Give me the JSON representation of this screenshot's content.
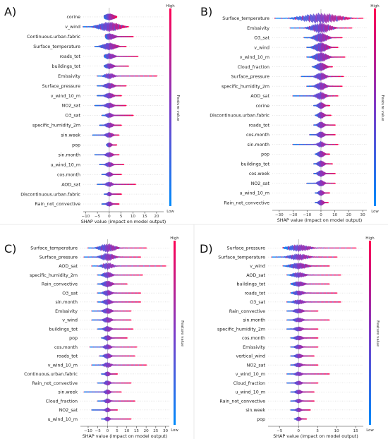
{
  "chart_data": [
    {
      "type": "beeswarm",
      "panel_label": "A)",
      "xlabel": "SHAP value (impact on model output)",
      "xticks": [
        -10,
        -5,
        0,
        5,
        10,
        15,
        20
      ],
      "xlim": [
        -11,
        23
      ],
      "colorbar": {
        "high": "High",
        "low": "Low",
        "label": "Feature value"
      },
      "features": [
        {
          "name": "corine",
          "min": -2,
          "max": 3,
          "mean_abs": 2.0
        },
        {
          "name": "v_wind",
          "min": -11,
          "max": 8,
          "mean_abs": 4.0
        },
        {
          "name": "Continuous.urban.fabric",
          "min": -1.5,
          "max": 10,
          "mean_abs": 2.0
        },
        {
          "name": "Surface_temperature",
          "min": -6,
          "max": 7,
          "mean_abs": 2.5
        },
        {
          "name": "roads_tot",
          "min": -2,
          "max": 12,
          "mean_abs": 1.8
        },
        {
          "name": "buildings_tot",
          "min": -2,
          "max": 8,
          "mean_abs": 1.5
        },
        {
          "name": "Emissivity",
          "min": -5,
          "max": 20,
          "mean_abs": 1.8
        },
        {
          "name": "Surface_pressure",
          "min": -5,
          "max": 7,
          "mean_abs": 1.7
        },
        {
          "name": "v_wind_10_m",
          "min": -5,
          "max": 5,
          "mean_abs": 1.5
        },
        {
          "name": "NO2_sat",
          "min": -6,
          "max": 7,
          "mean_abs": 1.5
        },
        {
          "name": "O3_sat",
          "min": -3,
          "max": 10,
          "mean_abs": 1.2
        },
        {
          "name": "specific_humidity_2m",
          "min": -4,
          "max": 5,
          "mean_abs": 1.3
        },
        {
          "name": "sin.week",
          "min": -7,
          "max": 4,
          "mean_abs": 1.3
        },
        {
          "name": "pop",
          "min": -1,
          "max": 3,
          "mean_abs": 0.8
        },
        {
          "name": "sin.month",
          "min": -6,
          "max": 4,
          "mean_abs": 1.2
        },
        {
          "name": "u_wind_10_m",
          "min": -4,
          "max": 6,
          "mean_abs": 1.2
        },
        {
          "name": "cos.month",
          "min": -3,
          "max": 5,
          "mean_abs": 1.0
        },
        {
          "name": "AOD_sat",
          "min": -5,
          "max": 11,
          "mean_abs": 1.2
        },
        {
          "name": "Discontinuous.urban.fabric",
          "min": -2,
          "max": 5,
          "mean_abs": 0.7
        },
        {
          "name": "Rain_not_convective",
          "min": -3,
          "max": 4,
          "mean_abs": 1.0
        }
      ]
    },
    {
      "type": "beeswarm",
      "panel_label": "B)",
      "xlabel": "SHAP value (impact on model output)",
      "xticks": [
        -30,
        -20,
        -10,
        0,
        10,
        20,
        30
      ],
      "xlim": [
        -35,
        33
      ],
      "colorbar": {
        "high": "High",
        "low": "Low",
        "label": "Feature value"
      },
      "features": [
        {
          "name": "Surface_temperature",
          "min": -33,
          "max": 30,
          "mean_abs": 12
        },
        {
          "name": "Emissivity",
          "min": -22,
          "max": 22,
          "mean_abs": 6
        },
        {
          "name": "O3_sat",
          "min": -12,
          "max": 15,
          "mean_abs": 4
        },
        {
          "name": "v_wind",
          "min": -10,
          "max": 12,
          "mean_abs": 4
        },
        {
          "name": "v_wind_10_m",
          "min": -10,
          "max": 17,
          "mean_abs": 4
        },
        {
          "name": "Cloud_fraction",
          "min": -6,
          "max": 8,
          "mean_abs": 3
        },
        {
          "name": "Surface_pressure",
          "min": -14,
          "max": 16,
          "mean_abs": 3
        },
        {
          "name": "specific_humidity_2m",
          "min": -10,
          "max": 15,
          "mean_abs": 3
        },
        {
          "name": "AOD_sat",
          "min": -20,
          "max": 12,
          "mean_abs": 3
        },
        {
          "name": "corine",
          "min": -5,
          "max": 6,
          "mean_abs": 2
        },
        {
          "name": "Discontinuous.urban.fabric",
          "min": -4,
          "max": 7,
          "mean_abs": 2
        },
        {
          "name": "roads_tot",
          "min": -5,
          "max": 10,
          "mean_abs": 2
        },
        {
          "name": "cos.month",
          "min": -8,
          "max": 10,
          "mean_abs": 2
        },
        {
          "name": "sin.month",
          "min": -20,
          "max": 12,
          "mean_abs": 2
        },
        {
          "name": "pop",
          "min": -4,
          "max": 6,
          "mean_abs": 2
        },
        {
          "name": "buildings_tot",
          "min": -5,
          "max": 8,
          "mean_abs": 2
        },
        {
          "name": "cos.week",
          "min": -5,
          "max": 10,
          "mean_abs": 2
        },
        {
          "name": "NO2_sat",
          "min": -10,
          "max": 10,
          "mean_abs": 2
        },
        {
          "name": "u_wind_10_m",
          "min": -4,
          "max": 6,
          "mean_abs": 1.5
        },
        {
          "name": "Rain_not_convective",
          "min": -4,
          "max": 5,
          "mean_abs": 1.5
        }
      ]
    },
    {
      "type": "beeswarm",
      "panel_label": "C)",
      "xlabel": "SHAP value (impact on model output)",
      "xticks": [
        -10,
        -5,
        0,
        5,
        10,
        15,
        20,
        25,
        30
      ],
      "xlim": [
        -14,
        32
      ],
      "colorbar": {
        "high": "High",
        "low": "Low",
        "label": "Feature value"
      },
      "features": [
        {
          "name": "Surface_temperature",
          "min": -10,
          "max": 20,
          "mean_abs": 3.5
        },
        {
          "name": "Surface_pressure",
          "min": -12,
          "max": 17,
          "mean_abs": 3.0
        },
        {
          "name": "AOD_sat",
          "min": -8,
          "max": 30,
          "mean_abs": 2.5
        },
        {
          "name": "specific_humidity_2m",
          "min": -5,
          "max": 18,
          "mean_abs": 2.0
        },
        {
          "name": "Rain_convective",
          "min": -5,
          "max": 10,
          "mean_abs": 2.0
        },
        {
          "name": "O3_sat",
          "min": -5,
          "max": 17,
          "mean_abs": 1.8
        },
        {
          "name": "sin.month",
          "min": -5,
          "max": 17,
          "mean_abs": 1.8
        },
        {
          "name": "Emissivity",
          "min": -8,
          "max": 12,
          "mean_abs": 1.8
        },
        {
          "name": "v_wind",
          "min": -8,
          "max": 12,
          "mean_abs": 1.7
        },
        {
          "name": "buildings_tot",
          "min": -5,
          "max": 13,
          "mean_abs": 1.6
        },
        {
          "name": "pop",
          "min": -3,
          "max": 10,
          "mean_abs": 1.4
        },
        {
          "name": "cos.month",
          "min": -9,
          "max": 15,
          "mean_abs": 1.5
        },
        {
          "name": "roads_tot",
          "min": -4,
          "max": 14,
          "mean_abs": 1.5
        },
        {
          "name": "v_wind_10_m",
          "min": -8,
          "max": 20,
          "mean_abs": 1.6
        },
        {
          "name": "Continuous.urban.fabric",
          "min": -3,
          "max": 5,
          "mean_abs": 1.0
        },
        {
          "name": "Rain_not_convective",
          "min": -5,
          "max": 12,
          "mean_abs": 1.2
        },
        {
          "name": "sin.week",
          "min": -12,
          "max": 7,
          "mean_abs": 1.2
        },
        {
          "name": "Cloud_fraction",
          "min": -5,
          "max": 14,
          "mean_abs": 1.2
        },
        {
          "name": "NO2_sat",
          "min": -8,
          "max": 5,
          "mean_abs": 1.0
        },
        {
          "name": "u_wind_10_m",
          "min": -3,
          "max": 12,
          "mean_abs": 1.0
        }
      ]
    },
    {
      "type": "beeswarm",
      "panel_label": "D)",
      "xlabel": "SHAP value (impact on model output)",
      "xticks": [
        -5,
        0,
        5,
        10,
        15
      ],
      "xlim": [
        -8,
        17
      ],
      "colorbar": {
        "high": "High",
        "low": "Low",
        "label": "Feature value"
      },
      "features": [
        {
          "name": "Surface_pressure",
          "min": -4,
          "max": 15,
          "mean_abs": 2.5
        },
        {
          "name": "Surface_temperature",
          "min": -7,
          "max": 10,
          "mean_abs": 2.2
        },
        {
          "name": "v_wind",
          "min": -4,
          "max": 8,
          "mean_abs": 2.0
        },
        {
          "name": "AOD_sat",
          "min": -3,
          "max": 11,
          "mean_abs": 1.5
        },
        {
          "name": "buildings_tot",
          "min": -2,
          "max": 8,
          "mean_abs": 1.3
        },
        {
          "name": "roads_tot",
          "min": -2,
          "max": 10,
          "mean_abs": 1.2
        },
        {
          "name": "O3_sat",
          "min": -3,
          "max": 11,
          "mean_abs": 1.2
        },
        {
          "name": "Rain_convective",
          "min": -3,
          "max": 5,
          "mean_abs": 1.0
        },
        {
          "name": "sin.month",
          "min": -3,
          "max": 8,
          "mean_abs": 1.0
        },
        {
          "name": "specific_humidity_2m",
          "min": -3,
          "max": 5,
          "mean_abs": 0.9
        },
        {
          "name": "cos.month",
          "min": -2,
          "max": 5,
          "mean_abs": 0.9
        },
        {
          "name": "Emissivity",
          "min": -2,
          "max": 5,
          "mean_abs": 0.8
        },
        {
          "name": "vertical_wind",
          "min": -2,
          "max": 4,
          "mean_abs": 0.8
        },
        {
          "name": "NO2_sat",
          "min": -2,
          "max": 5,
          "mean_abs": 0.8
        },
        {
          "name": "v_wind_10_m",
          "min": -3,
          "max": 8,
          "mean_abs": 0.8
        },
        {
          "name": "Cloud_fraction",
          "min": -3,
          "max": 5,
          "mean_abs": 0.7
        },
        {
          "name": "u_wind_10_m",
          "min": -2,
          "max": 4,
          "mean_abs": 0.7
        },
        {
          "name": "Rain_not_convective",
          "min": -2,
          "max": 4,
          "mean_abs": 0.6
        },
        {
          "name": "sin.week",
          "min": -2,
          "max": 3,
          "mean_abs": 0.6
        },
        {
          "name": "pop",
          "min": -1,
          "max": 2,
          "mean_abs": 0.5
        }
      ]
    }
  ],
  "colors": {
    "high": "#ff0052",
    "low": "#008bfb"
  }
}
